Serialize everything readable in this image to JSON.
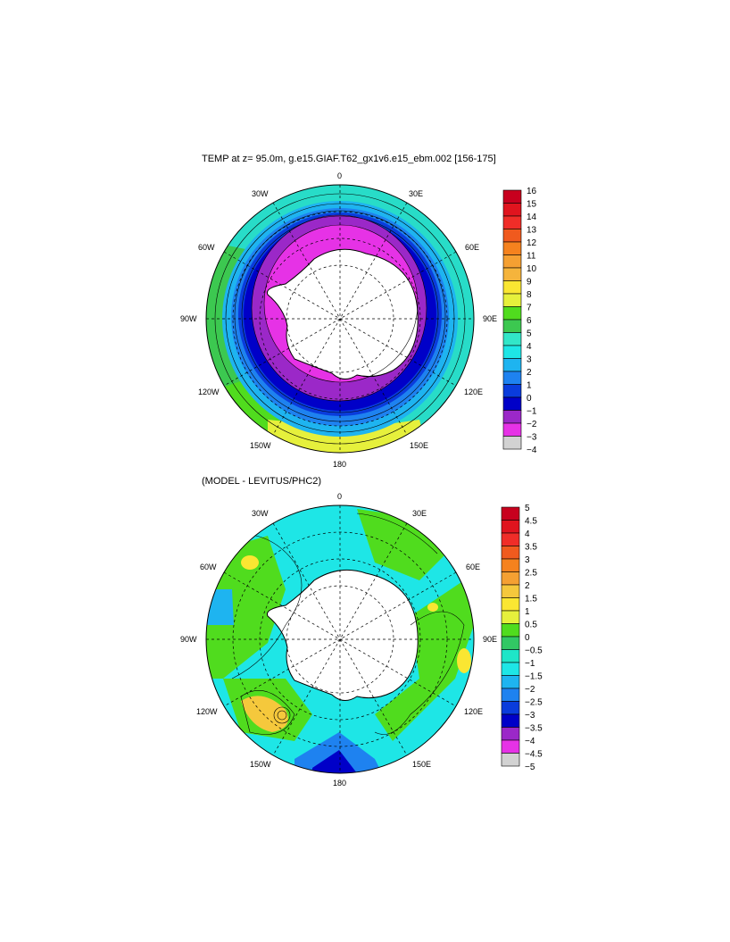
{
  "panel1": {
    "title": "TEMP at z=  95.0m, g.e15.GIAF.T62_gx1v6.e15_ebm.002 [156-175]",
    "lon_labels": [
      "0",
      "30E",
      "60E",
      "90E",
      "120E",
      "150E",
      "180",
      "150W",
      "120W",
      "90W",
      "60W",
      "30W"
    ],
    "colorbar": {
      "levels": [
        "16",
        "15",
        "14",
        "13",
        "12",
        "11",
        "10",
        "9",
        "8",
        "7",
        "6",
        "5",
        "4",
        "3",
        "2",
        "1",
        "0",
        "−1",
        "−2",
        "−3",
        "−4"
      ],
      "colors": [
        "#c8001e",
        "#e0141e",
        "#f02d28",
        "#f05a1e",
        "#f5821e",
        "#f5a032",
        "#f5b43c",
        "#fae632",
        "#e6f03c",
        "#50dc1e",
        "#3cc850",
        "#32e6c8",
        "#1ee6e6",
        "#1eb4f0",
        "#1e82f0",
        "#0a3cdc",
        "#0000c8",
        "#9b28c8",
        "#e632e6",
        "#d2d2d2",
        "#6e6e6e"
      ]
    }
  },
  "panel2": {
    "title": "(MODEL - LEVITUS/PHC2)",
    "lon_labels": [
      "0",
      "30E",
      "60E",
      "90E",
      "120E",
      "150E",
      "180",
      "150W",
      "120W",
      "90W",
      "60W",
      "30W"
    ],
    "colorbar": {
      "levels": [
        "5",
        "4.5",
        "4",
        "3.5",
        "3",
        "2.5",
        "2",
        "1.5",
        "1",
        "0.5",
        "0",
        "−0.5",
        "−1",
        "−1.5",
        "−2",
        "−2.5",
        "−3",
        "−3.5",
        "−4",
        "−4.5",
        "−5"
      ],
      "colors": [
        "#c8001e",
        "#e0141e",
        "#f02d28",
        "#f05a1e",
        "#f5821e",
        "#f5a032",
        "#f5c83c",
        "#fae632",
        "#e6f03c",
        "#50dc1e",
        "#32c864",
        "#1ee6c8",
        "#1ee6e6",
        "#1eb4f0",
        "#1e82f0",
        "#0a3cdc",
        "#0000c8",
        "#9b28c8",
        "#e632e6",
        "#d2d2d2",
        "#6e6e6e"
      ]
    }
  }
}
